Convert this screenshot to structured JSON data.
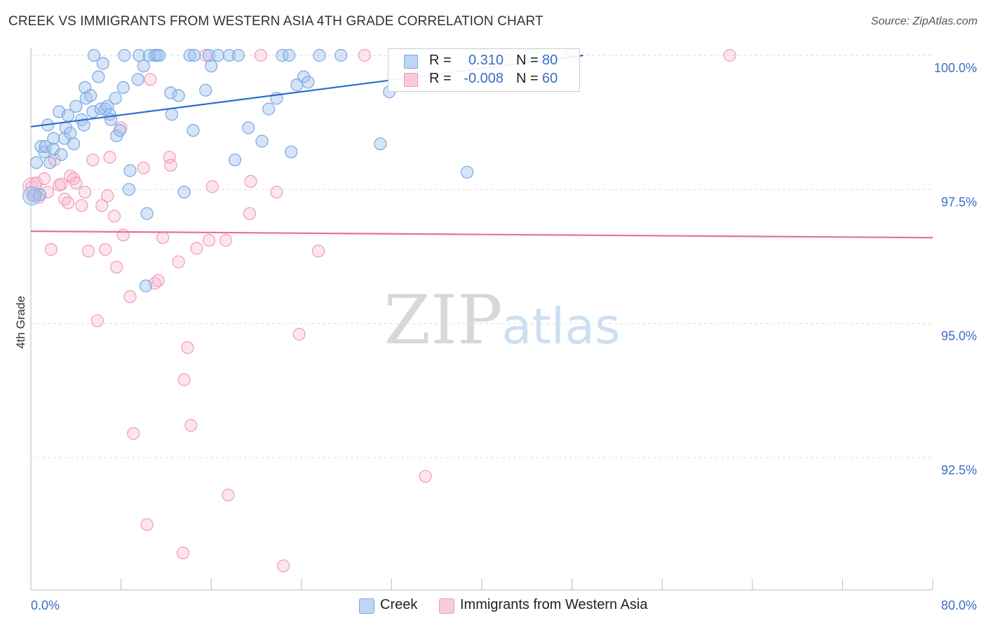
{
  "title": "CREEK VS IMMIGRANTS FROM WESTERN ASIA 4TH GRADE CORRELATION CHART",
  "source": "Source: ZipAtlas.com",
  "colors": {
    "creek": "#7aa7e0",
    "creek_fill": "rgba(164,196,240,0.45)",
    "creek_line": "#2a6fcc",
    "immig": "#f09ab8",
    "immig_fill": "rgba(248,180,204,0.35)",
    "immig_line": "#e8709a",
    "tick_label": "#3a6fc4",
    "grid": "#dddddd"
  },
  "legend": {
    "r_label": "R =",
    "n_label": "N =",
    "creek_r": "0.310",
    "creek_n": "80",
    "immig_r": "-0.008",
    "immig_n": "60"
  },
  "bottom_legend": {
    "creek": "Creek",
    "immig": "Immigrants from Western Asia"
  },
  "watermark": {
    "zip": "ZIP",
    "atlas": "atlas"
  },
  "chart_data": {
    "type": "scatter",
    "title": "CREEK VS IMMIGRANTS FROM WESTERN ASIA 4TH GRADE CORRELATION CHART",
    "xlabel": "",
    "ylabel": "4th Grade",
    "xlim": [
      0,
      80
    ],
    "ylim": [
      90.0,
      100.4
    ],
    "x_tick_labels": [
      "0.0%",
      "80.0%"
    ],
    "y_ticks": [
      92.5,
      95.0,
      97.5,
      100.0
    ],
    "y_tick_labels": [
      "92.5%",
      "95.0%",
      "97.5%",
      "100.0%"
    ],
    "grid": true,
    "series": [
      {
        "name": "Creek",
        "r": 0.31,
        "n": 80,
        "trend": {
          "x": [
            0,
            49
          ],
          "y": [
            98.67,
            100.0
          ]
        },
        "points": [
          [
            0.2,
            97.38
          ],
          [
            0.5,
            98.0
          ],
          [
            0.8,
            97.4
          ],
          [
            0.9,
            98.3
          ],
          [
            1.2,
            98.2
          ],
          [
            1.3,
            98.3
          ],
          [
            1.5,
            98.7
          ],
          [
            1.7,
            98.0
          ],
          [
            2.0,
            98.45
          ],
          [
            2.0,
            98.25
          ],
          [
            2.5,
            98.95
          ],
          [
            2.7,
            98.15
          ],
          [
            3.0,
            98.45
          ],
          [
            3.1,
            98.65
          ],
          [
            3.3,
            98.88
          ],
          [
            3.5,
            98.55
          ],
          [
            3.8,
            98.35
          ],
          [
            4.0,
            99.05
          ],
          [
            4.5,
            98.8
          ],
          [
            4.7,
            98.7
          ],
          [
            4.8,
            99.4
          ],
          [
            4.9,
            99.2
          ],
          [
            5.3,
            99.25
          ],
          [
            5.5,
            98.95
          ],
          [
            5.6,
            100.0
          ],
          [
            6.0,
            99.6
          ],
          [
            6.2,
            99.0
          ],
          [
            6.4,
            99.85
          ],
          [
            6.6,
            99.0
          ],
          [
            6.8,
            99.05
          ],
          [
            7.0,
            98.9
          ],
          [
            7.1,
            98.8
          ],
          [
            7.5,
            99.2
          ],
          [
            7.6,
            98.5
          ],
          [
            7.9,
            98.6
          ],
          [
            8.2,
            99.4
          ],
          [
            8.3,
            100.0
          ],
          [
            8.7,
            97.5
          ],
          [
            8.8,
            97.85
          ],
          [
            9.5,
            99.55
          ],
          [
            9.6,
            100.0
          ],
          [
            10.0,
            99.8
          ],
          [
            10.2,
            95.7
          ],
          [
            10.3,
            97.05
          ],
          [
            10.5,
            100.0
          ],
          [
            11.0,
            100.0
          ],
          [
            11.2,
            100.0
          ],
          [
            11.4,
            100.0
          ],
          [
            12.4,
            99.3
          ],
          [
            12.5,
            98.9
          ],
          [
            13.1,
            99.25
          ],
          [
            13.6,
            97.45
          ],
          [
            14.1,
            100.0
          ],
          [
            14.4,
            98.6
          ],
          [
            14.5,
            100.0
          ],
          [
            15.5,
            99.35
          ],
          [
            15.8,
            100.0
          ],
          [
            16.0,
            99.8
          ],
          [
            16.6,
            100.0
          ],
          [
            17.6,
            100.0
          ],
          [
            18.1,
            98.05
          ],
          [
            18.4,
            100.0
          ],
          [
            19.3,
            98.65
          ],
          [
            20.5,
            98.4
          ],
          [
            21.1,
            99.0
          ],
          [
            21.8,
            99.2
          ],
          [
            22.3,
            100.0
          ],
          [
            22.9,
            100.0
          ],
          [
            23.1,
            98.2
          ],
          [
            23.6,
            99.45
          ],
          [
            24.2,
            99.6
          ],
          [
            24.6,
            99.5
          ],
          [
            25.6,
            100.0
          ],
          [
            27.5,
            100.0
          ],
          [
            31.0,
            98.35
          ],
          [
            31.8,
            99.32
          ],
          [
            38.7,
            97.82
          ],
          [
            40.0,
            100.0
          ],
          [
            44.4,
            100.0
          ],
          [
            47.8,
            100.0
          ]
        ]
      },
      {
        "name": "Immigrants from Western Asia",
        "r": -0.008,
        "n": 60,
        "trend": {
          "x": [
            0,
            80
          ],
          "y": [
            96.72,
            96.6
          ]
        },
        "points": [
          [
            0.1,
            97.55
          ],
          [
            0.3,
            97.4
          ],
          [
            0.5,
            97.62
          ],
          [
            0.7,
            97.35
          ],
          [
            1.2,
            97.7
          ],
          [
            1.5,
            97.45
          ],
          [
            1.8,
            96.38
          ],
          [
            2.1,
            98.05
          ],
          [
            2.5,
            97.58
          ],
          [
            2.7,
            97.6
          ],
          [
            3.0,
            97.32
          ],
          [
            3.3,
            97.25
          ],
          [
            3.5,
            97.75
          ],
          [
            3.8,
            97.7
          ],
          [
            4.0,
            97.62
          ],
          [
            4.5,
            97.2
          ],
          [
            4.8,
            97.45
          ],
          [
            5.1,
            96.35
          ],
          [
            5.5,
            98.05
          ],
          [
            5.9,
            95.05
          ],
          [
            6.3,
            97.2
          ],
          [
            6.6,
            96.38
          ],
          [
            6.8,
            97.38
          ],
          [
            7.0,
            98.1
          ],
          [
            7.4,
            97.0
          ],
          [
            7.6,
            96.05
          ],
          [
            8.0,
            98.65
          ],
          [
            8.2,
            96.65
          ],
          [
            8.8,
            95.5
          ],
          [
            9.1,
            92.95
          ],
          [
            10.0,
            97.9
          ],
          [
            10.3,
            91.25
          ],
          [
            10.6,
            99.55
          ],
          [
            11.0,
            95.75
          ],
          [
            11.3,
            95.8
          ],
          [
            11.7,
            96.6
          ],
          [
            12.3,
            98.1
          ],
          [
            12.4,
            97.95
          ],
          [
            13.1,
            96.15
          ],
          [
            13.5,
            90.72
          ],
          [
            13.6,
            93.95
          ],
          [
            13.9,
            94.55
          ],
          [
            14.2,
            93.1
          ],
          [
            14.7,
            96.4
          ],
          [
            15.5,
            100.0
          ],
          [
            15.8,
            96.55
          ],
          [
            16.1,
            97.55
          ],
          [
            17.3,
            96.55
          ],
          [
            17.5,
            91.8
          ],
          [
            19.4,
            97.05
          ],
          [
            19.5,
            97.65
          ],
          [
            20.4,
            100.0
          ],
          [
            21.8,
            97.45
          ],
          [
            22.4,
            90.48
          ],
          [
            23.8,
            94.8
          ],
          [
            25.5,
            96.35
          ],
          [
            29.6,
            100.0
          ],
          [
            35.0,
            92.15
          ],
          [
            42.0,
            100.0
          ],
          [
            62.0,
            100.0
          ]
        ]
      }
    ]
  }
}
